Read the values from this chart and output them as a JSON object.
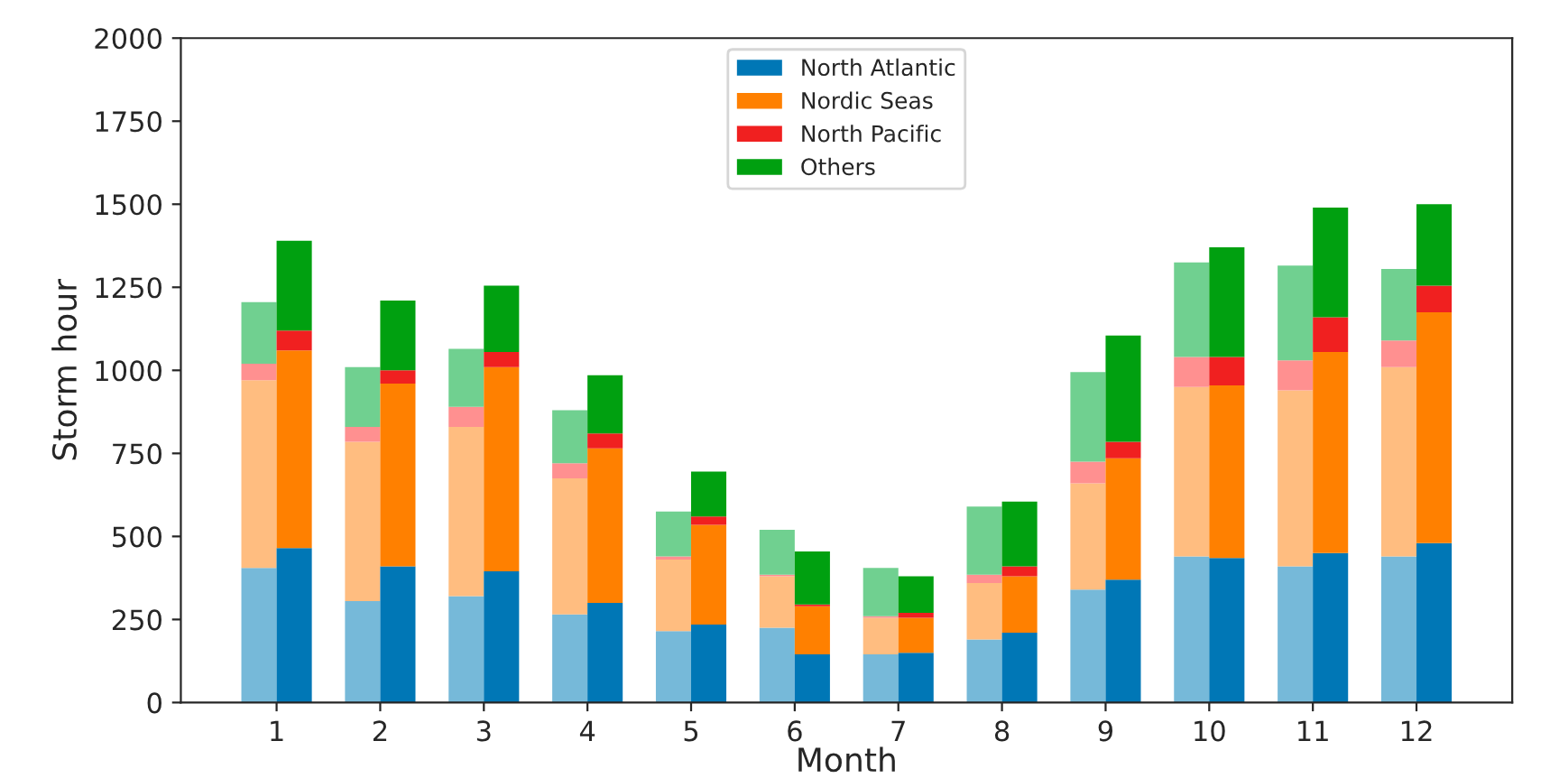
{
  "chart_data": {
    "type": "bar",
    "xlabel": "Month",
    "ylabel": "Storm hour",
    "categories": [
      "1",
      "2",
      "3",
      "4",
      "5",
      "6",
      "7",
      "8",
      "9",
      "10",
      "11",
      "12"
    ],
    "ylim": [
      0,
      2000
    ],
    "yticks": [
      0,
      250,
      500,
      750,
      1000,
      1250,
      1500,
      1750,
      2000
    ],
    "grid": false,
    "legend": "top",
    "series": [
      {
        "color": "#76b9d9",
        "values": [
          405,
          305,
          320,
          265,
          215,
          225,
          145,
          190,
          340,
          440,
          410,
          440
        ],
        "base": [
          0,
          0,
          0,
          0,
          0,
          0,
          0,
          0,
          0,
          0,
          0,
          0
        ]
      },
      {
        "color": "#ffbd80",
        "values": [
          565,
          480,
          510,
          410,
          215,
          155,
          110,
          170,
          320,
          510,
          530,
          570
        ],
        "base": [
          405,
          305,
          320,
          265,
          215,
          225,
          145,
          190,
          340,
          440,
          410,
          440
        ]
      },
      {
        "color": "#ff9090",
        "values": [
          50,
          45,
          60,
          45,
          10,
          5,
          5,
          25,
          65,
          90,
          90,
          80
        ],
        "base": [
          970,
          785,
          830,
          675,
          430,
          380,
          255,
          360,
          660,
          950,
          940,
          1010
        ]
      },
      {
        "color": "#70d090",
        "values": [
          185,
          180,
          175,
          160,
          135,
          135,
          145,
          205,
          270,
          285,
          285,
          215
        ],
        "base": [
          1020,
          830,
          890,
          720,
          440,
          385,
          260,
          385,
          725,
          1040,
          1030,
          1090
        ]
      },
      {
        "name": "North Atlantic",
        "color": "#0077b6",
        "values": [
          465,
          410,
          395,
          300,
          235,
          145,
          150,
          210,
          370,
          435,
          450,
          480
        ],
        "base": [
          0,
          0,
          0,
          0,
          0,
          0,
          0,
          0,
          0,
          0,
          0,
          0
        ]
      },
      {
        "name": "Nordic Seas",
        "color": "#ff8000",
        "values": [
          595,
          550,
          615,
          465,
          300,
          145,
          105,
          170,
          365,
          520,
          605,
          695
        ],
        "base": [
          465,
          410,
          395,
          300,
          235,
          145,
          150,
          210,
          370,
          435,
          450,
          480
        ]
      },
      {
        "name": "North Pacific",
        "color": "#f02020",
        "values": [
          60,
          40,
          45,
          45,
          25,
          5,
          15,
          30,
          50,
          85,
          105,
          80
        ],
        "base": [
          1060,
          960,
          1010,
          765,
          535,
          290,
          255,
          380,
          735,
          955,
          1055,
          1175
        ]
      },
      {
        "name": "Others",
        "color": "#00a010",
        "values": [
          270,
          210,
          200,
          175,
          135,
          160,
          110,
          195,
          320,
          330,
          330,
          245
        ],
        "base": [
          1120,
          1000,
          1055,
          810,
          560,
          295,
          270,
          410,
          785,
          1040,
          1160,
          1255
        ]
      }
    ]
  }
}
